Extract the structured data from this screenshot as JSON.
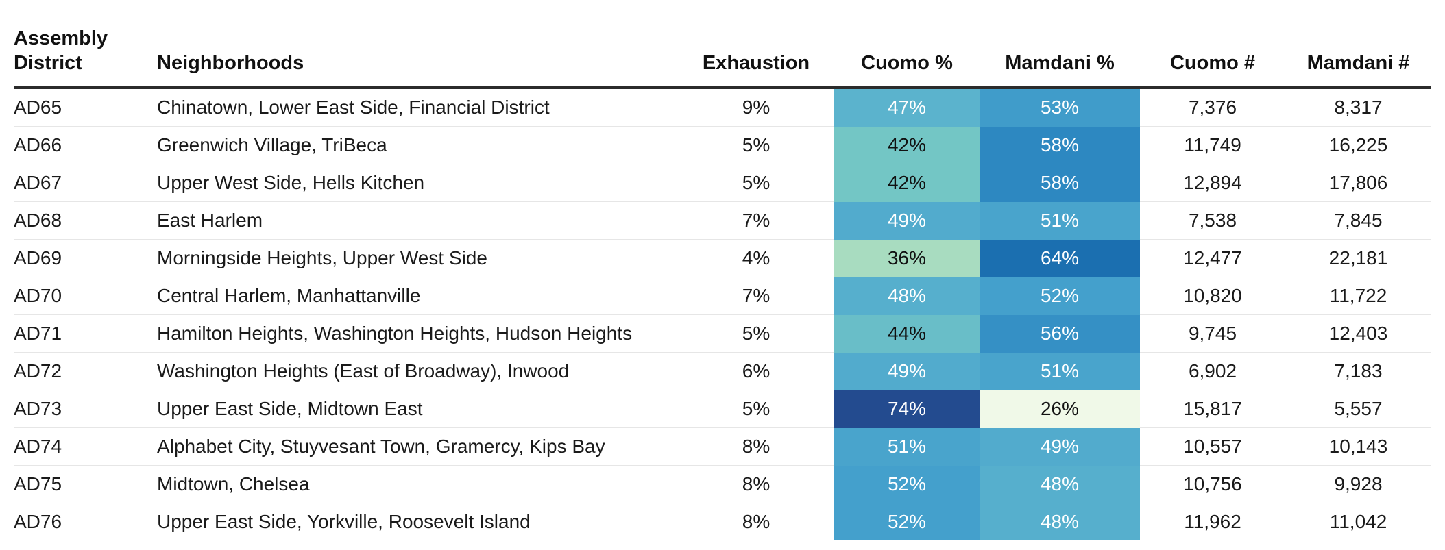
{
  "chart_data": {
    "type": "table",
    "columns": [
      "Assembly District",
      "Neighborhoods",
      "Exhaustion",
      "Cuomo %",
      "Mamdani %",
      "Cuomo #",
      "Mamdani #"
    ],
    "header_lines": {
      "district": [
        "Assembly",
        "District"
      ]
    },
    "rows": [
      {
        "district": "AD65",
        "neighborhoods": "Chinatown, Lower East Side, Financial District",
        "exhaustion": "9%",
        "cuomo_pct": "47%",
        "mamdani_pct": "53%",
        "cuomo_num": "7,376",
        "mamdani_num": "8,317",
        "cuomo_val": 47,
        "mamdani_val": 53
      },
      {
        "district": "AD66",
        "neighborhoods": "Greenwich Village, TriBeca",
        "exhaustion": "5%",
        "cuomo_pct": "42%",
        "mamdani_pct": "58%",
        "cuomo_num": "11,749",
        "mamdani_num": "16,225",
        "cuomo_val": 42,
        "mamdani_val": 58
      },
      {
        "district": "AD67",
        "neighborhoods": "Upper West Side, Hells Kitchen",
        "exhaustion": "5%",
        "cuomo_pct": "42%",
        "mamdani_pct": "58%",
        "cuomo_num": "12,894",
        "mamdani_num": "17,806",
        "cuomo_val": 42,
        "mamdani_val": 58
      },
      {
        "district": "AD68",
        "neighborhoods": "East Harlem",
        "exhaustion": "7%",
        "cuomo_pct": "49%",
        "mamdani_pct": "51%",
        "cuomo_num": "7,538",
        "mamdani_num": "7,845",
        "cuomo_val": 49,
        "mamdani_val": 51
      },
      {
        "district": "AD69",
        "neighborhoods": "Morningside Heights, Upper West Side",
        "exhaustion": "4%",
        "cuomo_pct": "36%",
        "mamdani_pct": "64%",
        "cuomo_num": "12,477",
        "mamdani_num": "22,181",
        "cuomo_val": 36,
        "mamdani_val": 64
      },
      {
        "district": "AD70",
        "neighborhoods": "Central Harlem, Manhattanville",
        "exhaustion": "7%",
        "cuomo_pct": "48%",
        "mamdani_pct": "52%",
        "cuomo_num": "10,820",
        "mamdani_num": "11,722",
        "cuomo_val": 48,
        "mamdani_val": 52
      },
      {
        "district": "AD71",
        "neighborhoods": "Hamilton Heights, Washington Heights, Hudson Heights",
        "exhaustion": "5%",
        "cuomo_pct": "44%",
        "mamdani_pct": "56%",
        "cuomo_num": "9,745",
        "mamdani_num": "12,403",
        "cuomo_val": 44,
        "mamdani_val": 56
      },
      {
        "district": "AD72",
        "neighborhoods": "Washington Heights (East of Broadway), Inwood",
        "exhaustion": "6%",
        "cuomo_pct": "49%",
        "mamdani_pct": "51%",
        "cuomo_num": "6,902",
        "mamdani_num": "7,183",
        "cuomo_val": 49,
        "mamdani_val": 51
      },
      {
        "district": "AD73",
        "neighborhoods": "Upper East Side, Midtown East",
        "exhaustion": "5%",
        "cuomo_pct": "74%",
        "mamdani_pct": "26%",
        "cuomo_num": "15,817",
        "mamdani_num": "5,557",
        "cuomo_val": 74,
        "mamdani_val": 26
      },
      {
        "district": "AD74",
        "neighborhoods": "Alphabet City, Stuyvesant Town, Gramercy, Kips Bay",
        "exhaustion": "8%",
        "cuomo_pct": "51%",
        "mamdani_pct": "49%",
        "cuomo_num": "10,557",
        "mamdani_num": "10,143",
        "cuomo_val": 51,
        "mamdani_val": 49
      },
      {
        "district": "AD75",
        "neighborhoods": "Midtown, Chelsea",
        "exhaustion": "8%",
        "cuomo_pct": "52%",
        "mamdani_pct": "48%",
        "cuomo_num": "10,756",
        "mamdani_num": "9,928",
        "cuomo_val": 52,
        "mamdani_val": 48
      },
      {
        "district": "AD76",
        "neighborhoods": "Upper East Side, Yorkville, Roosevelt Island",
        "exhaustion": "8%",
        "cuomo_pct": "52%",
        "mamdani_pct": "48%",
        "cuomo_num": "11,962",
        "mamdani_num": "11,042",
        "cuomo_val": 52,
        "mamdani_val": 48
      }
    ],
    "heatmap_scale": {
      "stops": [
        {
          "value": 26,
          "color": "#f0f9e8"
        },
        {
          "value": 36,
          "color": "#a8dcc0"
        },
        {
          "value": 42,
          "color": "#73c6c5"
        },
        {
          "value": 47,
          "color": "#5bb3cd"
        },
        {
          "value": 52,
          "color": "#44a0cc"
        },
        {
          "value": 58,
          "color": "#2d88c1"
        },
        {
          "value": 64,
          "color": "#1b6fb0"
        },
        {
          "value": 74,
          "color": "#234b8f"
        }
      ],
      "light_text_above": 45
    }
  }
}
